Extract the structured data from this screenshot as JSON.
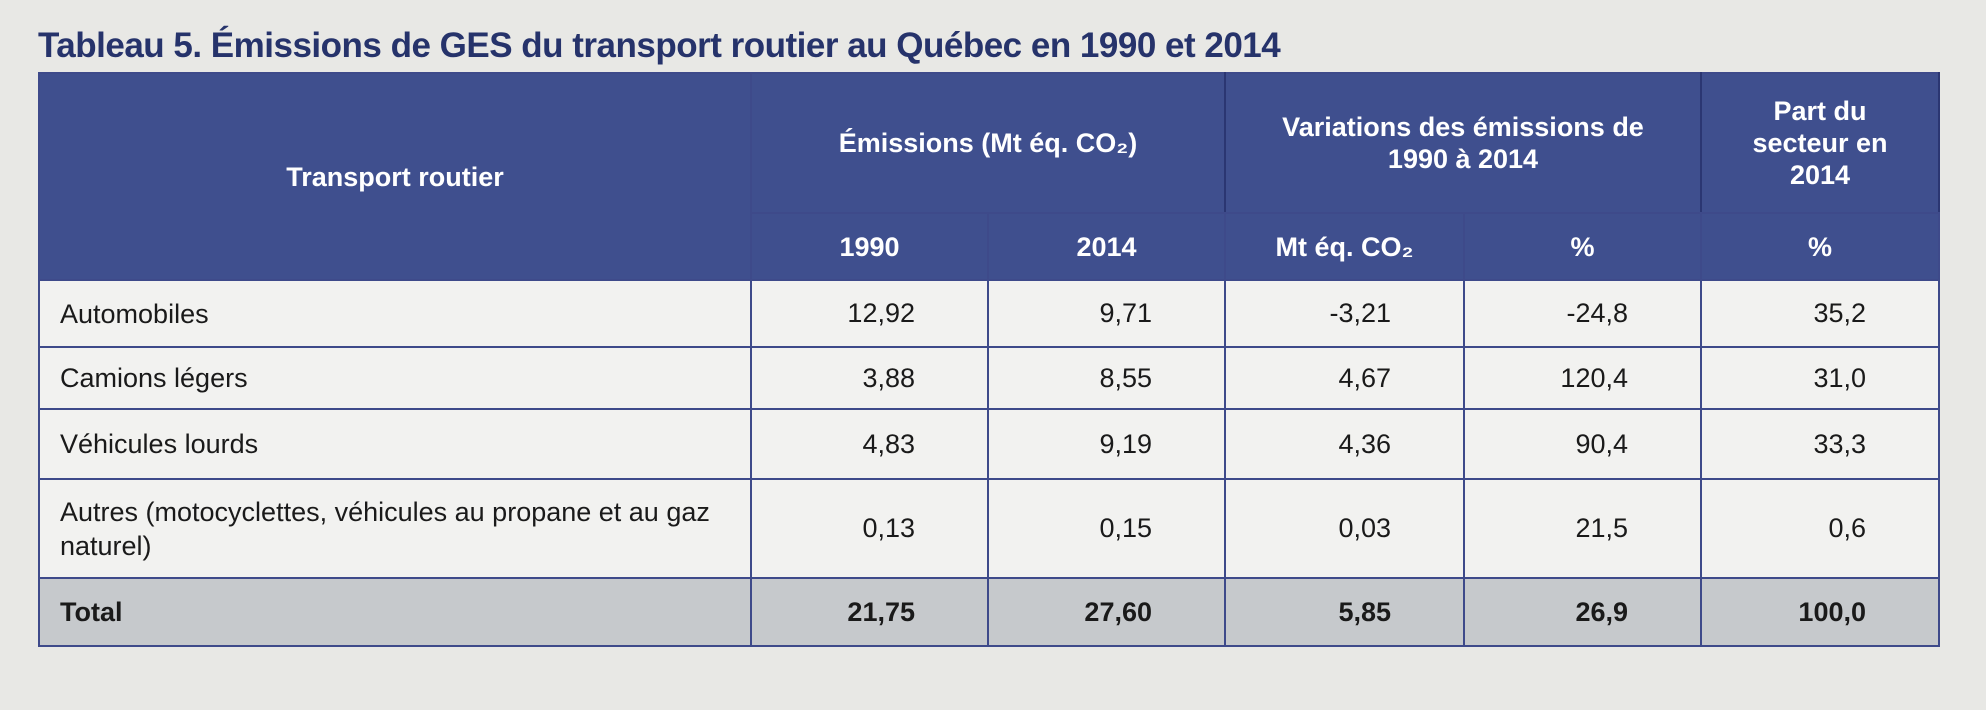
{
  "title": "Tableau 5. Émissions de GES du transport routier au Québec en 1990 et 2014",
  "table": {
    "header": {
      "row_label": "Transport routier",
      "groups": [
        "Émissions (Mt éq. CO₂)",
        "Variations des émissions de 1990 à 2014",
        "Part du secteur en 2014"
      ],
      "columns": [
        "1990",
        "2014",
        "Mt éq. CO₂",
        "%",
        "%"
      ]
    },
    "rows": [
      [
        "Automobiles",
        "12,92",
        "9,71",
        "-3,21",
        "-24,8",
        "35,2"
      ],
      [
        "Camions légers",
        "3,88",
        "8,55",
        "4,67",
        "120,4",
        "31,0"
      ],
      [
        "Véhicules lourds",
        "4,83",
        "9,19",
        "4,36",
        "90,4",
        "33,3"
      ],
      [
        "Autres (motocyclettes, véhicules au propane et au gaz naturel)",
        "0,13",
        "0,15",
        "0,03",
        "21,5",
        "0,6"
      ]
    ],
    "total": [
      "Total",
      "21,75",
      "27,60",
      "5,85",
      "26,9",
      "100,0"
    ]
  }
}
